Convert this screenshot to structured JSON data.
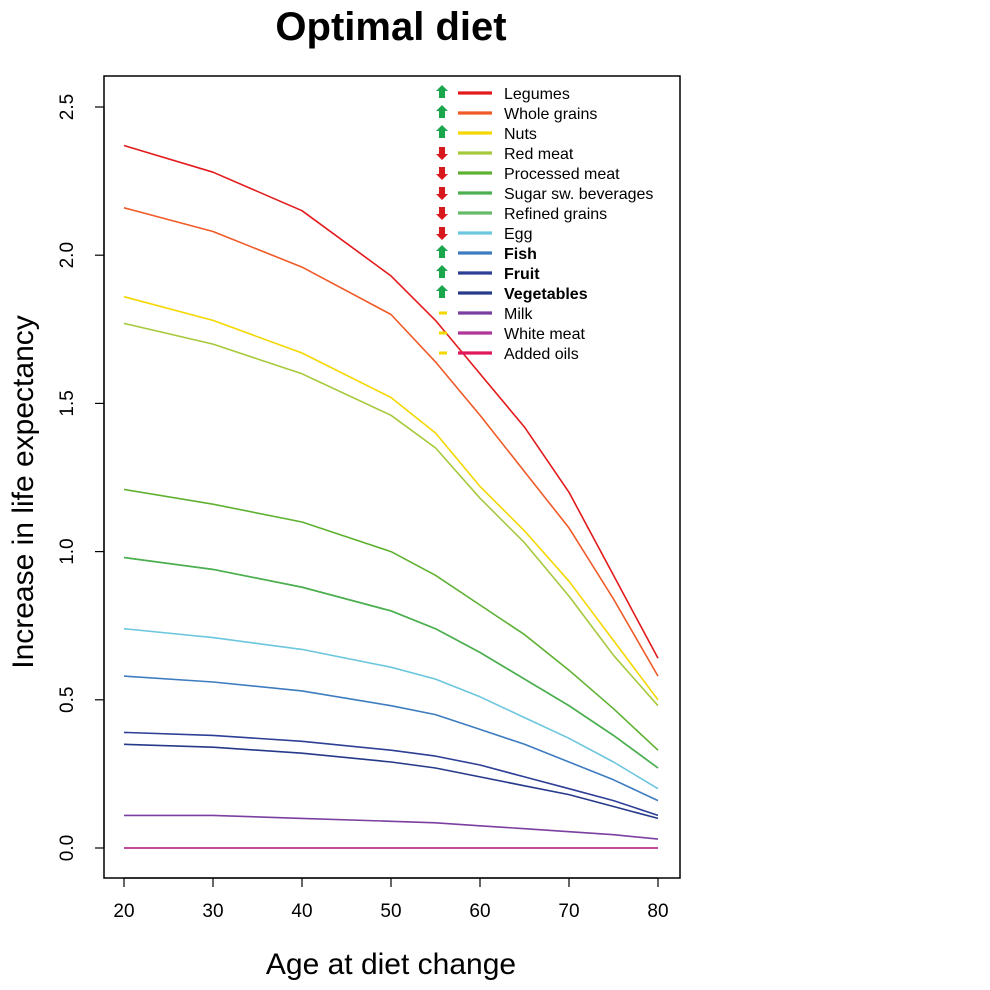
{
  "chart_data": {
    "type": "line",
    "title": "Optimal diet",
    "xlabel": "Age at diet change",
    "ylabel": "Increase in life expectancy",
    "xlim": [
      20,
      80
    ],
    "ylim": [
      0.0,
      2.5
    ],
    "x_ticks": [
      20,
      30,
      40,
      50,
      60,
      70,
      80
    ],
    "y_ticks": [
      "0.0",
      "0.5",
      "1.0",
      "1.5",
      "2.0",
      "2.5"
    ],
    "grid": false,
    "legend_position": "top-right",
    "x": [
      20,
      30,
      40,
      50,
      55,
      60,
      65,
      70,
      75,
      80
    ],
    "series": [
      {
        "name": "Legumes",
        "color": "#e31a1c",
        "direction": "up",
        "bold": false,
        "values": [
          2.37,
          2.28,
          2.15,
          1.93,
          1.78,
          1.6,
          1.42,
          1.2,
          0.92,
          0.64
        ]
      },
      {
        "name": "Whole grains",
        "color": "#f05a28",
        "direction": "up",
        "bold": false,
        "values": [
          2.16,
          2.08,
          1.96,
          1.8,
          1.64,
          1.46,
          1.27,
          1.08,
          0.84,
          0.58
        ]
      },
      {
        "name": "Nuts",
        "color": "#f5d700",
        "direction": "up",
        "bold": false,
        "values": [
          1.86,
          1.78,
          1.67,
          1.52,
          1.4,
          1.22,
          1.07,
          0.9,
          0.7,
          0.5
        ]
      },
      {
        "name": "Red meat",
        "color": "#a6c93c",
        "direction": "down",
        "bold": false,
        "values": [
          1.77,
          1.7,
          1.6,
          1.46,
          1.35,
          1.18,
          1.03,
          0.85,
          0.65,
          0.48
        ]
      },
      {
        "name": "Processed meat",
        "color": "#5fb132",
        "direction": "down",
        "bold": false,
        "values": [
          1.21,
          1.16,
          1.1,
          1.0,
          0.92,
          0.82,
          0.72,
          0.6,
          0.47,
          0.33
        ]
      },
      {
        "name": "Sugar  sw. beverages",
        "color": "#4caf50",
        "direction": "down",
        "bold": false,
        "values": [
          0.98,
          0.94,
          0.88,
          0.8,
          0.74,
          0.66,
          0.57,
          0.48,
          0.38,
          0.27
        ]
      },
      {
        "name": "Refined grains",
        "color": "#66bb6a",
        "direction": "down",
        "bold": false,
        "values": [
          0.98,
          0.94,
          0.88,
          0.8,
          0.74,
          0.66,
          0.57,
          0.48,
          0.38,
          0.27
        ]
      },
      {
        "name": "Egg",
        "color": "#6cc6dd",
        "direction": "down",
        "bold": false,
        "values": [
          0.74,
          0.71,
          0.67,
          0.61,
          0.57,
          0.51,
          0.44,
          0.37,
          0.29,
          0.2
        ]
      },
      {
        "name": "Fish",
        "color": "#3e7cc0",
        "direction": "up",
        "bold": true,
        "values": [
          0.58,
          0.56,
          0.53,
          0.48,
          0.45,
          0.4,
          0.35,
          0.29,
          0.23,
          0.16
        ]
      },
      {
        "name": "Fruit",
        "color": "#2e3f96",
        "direction": "up",
        "bold": true,
        "values": [
          0.39,
          0.38,
          0.36,
          0.33,
          0.31,
          0.28,
          0.24,
          0.2,
          0.16,
          0.11
        ]
      },
      {
        "name": "Vegetables",
        "color": "#263a8a",
        "direction": "up",
        "bold": true,
        "values": [
          0.35,
          0.34,
          0.32,
          0.29,
          0.27,
          0.24,
          0.21,
          0.18,
          0.14,
          0.1
        ]
      },
      {
        "name": "Milk",
        "color": "#7b3fa0",
        "direction": "neutral",
        "bold": false,
        "values": [
          0.11,
          0.11,
          0.1,
          0.09,
          0.085,
          0.075,
          0.065,
          0.055,
          0.045,
          0.03
        ]
      },
      {
        "name": "White meat",
        "color": "#b03596",
        "direction": "neutral",
        "bold": false,
        "values": [
          0.0,
          0.0,
          0.0,
          0.0,
          0.0,
          0.0,
          0.0,
          0.0,
          0.0,
          0.0
        ]
      },
      {
        "name": "Added oils",
        "color": "#e0195d",
        "direction": "neutral",
        "bold": false,
        "values": [
          0.0,
          0.0,
          0.0,
          0.0,
          0.0,
          0.0,
          0.0,
          0.0,
          0.0,
          0.0
        ]
      }
    ],
    "direction_colors": {
      "up": "#1aa64a",
      "down": "#d7191c",
      "neutral": "#f5d700"
    }
  }
}
